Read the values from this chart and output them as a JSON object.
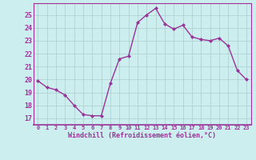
{
  "x": [
    0,
    1,
    2,
    3,
    4,
    5,
    6,
    7,
    8,
    9,
    10,
    11,
    12,
    13,
    14,
    15,
    16,
    17,
    18,
    19,
    20,
    21,
    22,
    23
  ],
  "y": [
    19.9,
    19.4,
    19.2,
    18.8,
    18.0,
    17.3,
    17.2,
    17.2,
    19.7,
    21.6,
    21.8,
    24.4,
    25.0,
    25.5,
    24.3,
    23.9,
    24.2,
    23.3,
    23.1,
    23.0,
    23.2,
    22.6,
    20.7,
    20.0
  ],
  "line_color": "#993399",
  "marker": "D",
  "marker_size": 2,
  "bg_color": "#cceeee",
  "grid_color": "#aacccc",
  "xlabel": "Windchill (Refroidissement éolien,°C)",
  "ylabel_ticks": [
    17,
    18,
    19,
    20,
    21,
    22,
    23,
    24,
    25
  ],
  "ylim": [
    16.5,
    25.9
  ],
  "xlim": [
    -0.5,
    23.5
  ],
  "tick_color": "#993399",
  "label_color": "#993399",
  "font_family": "monospace",
  "spine_color": "#993399"
}
